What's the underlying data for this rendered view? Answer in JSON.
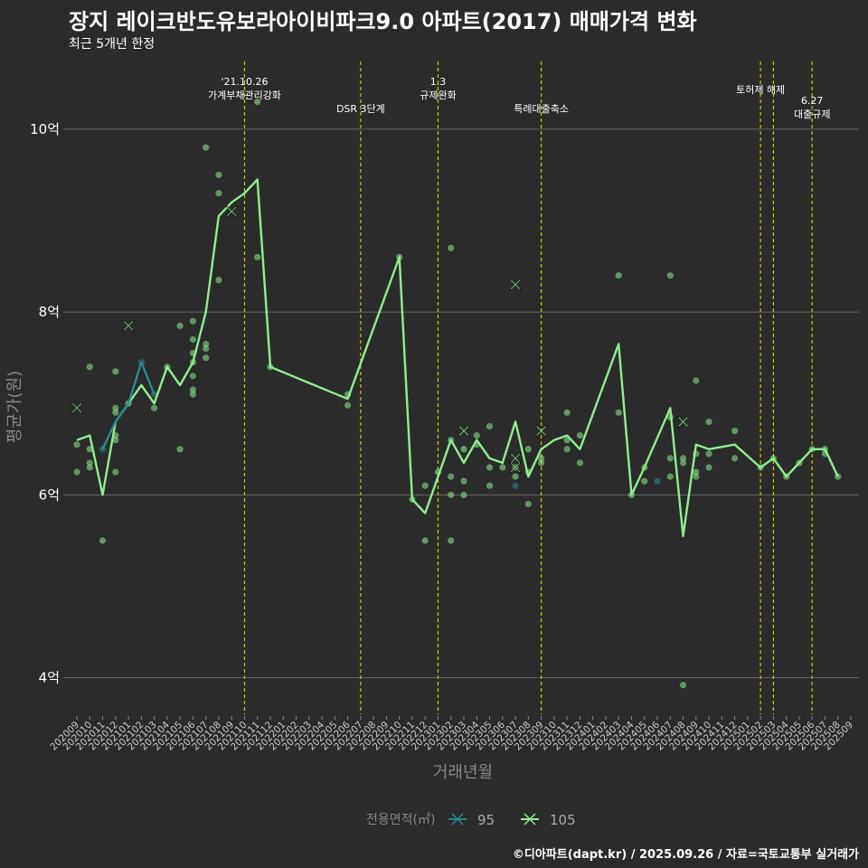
{
  "title": "장지 레이크반도유보라아이비파크9.0 아파트(2017) 매매가격 변화",
  "subtitle": "최근 5개년 한정",
  "caption": "©디아파트(dapt.kr) / 2025.09.26 / 자료=국토교통부 실거래가",
  "colors": {
    "s95": "#2a8a8f",
    "s105": "#90ee90",
    "vline": "#c8c800",
    "grid": "#666666"
  },
  "chart_data": {
    "type": "line",
    "title": "장지 레이크반도유보라아이비파크9.0 아파트(2017) 매매가격 변화",
    "xlabel": "거래년월",
    "ylabel": "평균가(원)",
    "ylim": [
      3.6,
      10.8
    ],
    "yticks": [
      4,
      6,
      8,
      10
    ],
    "ytick_labels": [
      "4억",
      "6억",
      "8억",
      "10억"
    ],
    "categories": [
      "202009",
      "202010",
      "202011",
      "202012",
      "202101",
      "202102",
      "202103",
      "202104",
      "202105",
      "202106",
      "202107",
      "202108",
      "202109",
      "202110",
      "202111",
      "202112",
      "202201",
      "202202",
      "202203",
      "202204",
      "202205",
      "202206",
      "202207",
      "202208",
      "202209",
      "202210",
      "202211",
      "202212",
      "202301",
      "202302",
      "202303",
      "202304",
      "202305",
      "202306",
      "202307",
      "202308",
      "202309",
      "202310",
      "202311",
      "202312",
      "202401",
      "202402",
      "202403",
      "202404",
      "202405",
      "202406",
      "202407",
      "202408",
      "202409",
      "202410",
      "202411",
      "202412",
      "202501",
      "202502",
      "202503",
      "202504",
      "202505",
      "202506",
      "202507",
      "202508",
      "202509"
    ],
    "legend_title": "전용면적(㎡)",
    "series": [
      {
        "name": "95",
        "color": "#2a8a8f",
        "line": [
          [
            "202011",
            6.5
          ],
          [
            "202012",
            6.8
          ],
          [
            "202101",
            7.0
          ],
          [
            "202102",
            7.45
          ],
          [
            "202103",
            7.1
          ]
        ],
        "points": [
          [
            "202011",
            6.5
          ],
          [
            "202102",
            7.45
          ],
          [
            "202103",
            7.1
          ],
          [
            "202307",
            6.1
          ],
          [
            "202406",
            6.15
          ]
        ],
        "crosses": []
      },
      {
        "name": "105",
        "color": "#90ee90",
        "line": [
          [
            "202009",
            6.6
          ],
          [
            "202010",
            6.65
          ],
          [
            "202011",
            6.0
          ],
          [
            "202012",
            6.8
          ],
          [
            "202101",
            7.0
          ],
          [
            "202102",
            7.2
          ],
          [
            "202103",
            7.0
          ],
          [
            "202104",
            7.4
          ],
          [
            "202105",
            7.2
          ],
          [
            "202106",
            7.45
          ],
          [
            "202107",
            8.0
          ],
          [
            "202108",
            9.05
          ],
          [
            "202109",
            9.2
          ],
          [
            "202110",
            9.3
          ],
          [
            "202111",
            9.45
          ],
          [
            "202112",
            7.4
          ],
          [
            "202206",
            7.05
          ],
          [
            "202210",
            8.6
          ],
          [
            "202211",
            5.95
          ],
          [
            "202212",
            5.8
          ],
          [
            "202301",
            6.2
          ],
          [
            "202302",
            6.6
          ],
          [
            "202303",
            6.35
          ],
          [
            "202304",
            6.6
          ],
          [
            "202305",
            6.4
          ],
          [
            "202306",
            6.35
          ],
          [
            "202307",
            6.8
          ],
          [
            "202308",
            6.2
          ],
          [
            "202309",
            6.5
          ],
          [
            "202310",
            6.6
          ],
          [
            "202311",
            6.65
          ],
          [
            "202312",
            6.5
          ],
          [
            "202403",
            7.65
          ],
          [
            "202404",
            6.0
          ],
          [
            "202405",
            6.3
          ],
          [
            "202407",
            6.95
          ],
          [
            "202408",
            5.55
          ],
          [
            "202409",
            6.55
          ],
          [
            "202410",
            6.5
          ],
          [
            "202412",
            6.55
          ],
          [
            "202502",
            6.3
          ],
          [
            "202503",
            6.4
          ],
          [
            "202504",
            6.2
          ],
          [
            "202505",
            6.35
          ],
          [
            "202506",
            6.5
          ],
          [
            "202507",
            6.5
          ],
          [
            "202508",
            6.2
          ]
        ],
        "points": [
          [
            "202009",
            6.25
          ],
          [
            "202009",
            6.55
          ],
          [
            "202010",
            7.4
          ],
          [
            "202010",
            6.5
          ],
          [
            "202010",
            6.35
          ],
          [
            "202010",
            6.3
          ],
          [
            "202011",
            5.5
          ],
          [
            "202012",
            6.9
          ],
          [
            "202012",
            6.95
          ],
          [
            "202012",
            6.65
          ],
          [
            "202012",
            6.6
          ],
          [
            "202012",
            7.35
          ],
          [
            "202012",
            6.25
          ],
          [
            "202101",
            7.0
          ],
          [
            "202103",
            6.95
          ],
          [
            "202104",
            7.4
          ],
          [
            "202105",
            7.85
          ],
          [
            "202105",
            6.5
          ],
          [
            "202106",
            7.9
          ],
          [
            "202106",
            7.7
          ],
          [
            "202106",
            7.55
          ],
          [
            "202106",
            7.45
          ],
          [
            "202106",
            7.3
          ],
          [
            "202106",
            7.15
          ],
          [
            "202106",
            7.1
          ],
          [
            "202107",
            9.8
          ],
          [
            "202107",
            7.65
          ],
          [
            "202107",
            7.6
          ],
          [
            "202107",
            7.5
          ],
          [
            "202108",
            9.5
          ],
          [
            "202108",
            9.3
          ],
          [
            "202108",
            8.35
          ],
          [
            "202111",
            10.3
          ],
          [
            "202111",
            8.6
          ],
          [
            "202112",
            7.4
          ],
          [
            "202206",
            7.1
          ],
          [
            "202206",
            6.98
          ],
          [
            "202210",
            8.6
          ],
          [
            "202211",
            5.95
          ],
          [
            "202212",
            6.1
          ],
          [
            "202212",
            5.5
          ],
          [
            "202301",
            6.25
          ],
          [
            "202302",
            8.7
          ],
          [
            "202302",
            6.6
          ],
          [
            "202302",
            6.2
          ],
          [
            "202302",
            6.0
          ],
          [
            "202302",
            5.5
          ],
          [
            "202303",
            6.5
          ],
          [
            "202303",
            6.15
          ],
          [
            "202303",
            6.0
          ],
          [
            "202304",
            6.65
          ],
          [
            "202304",
            6.55
          ],
          [
            "202305",
            6.75
          ],
          [
            "202305",
            6.3
          ],
          [
            "202305",
            6.1
          ],
          [
            "202306",
            6.3
          ],
          [
            "202307",
            6.3
          ],
          [
            "202307",
            6.2
          ],
          [
            "202308",
            6.5
          ],
          [
            "202308",
            5.9
          ],
          [
            "202308",
            6.25
          ],
          [
            "202309",
            6.4
          ],
          [
            "202309",
            6.35
          ],
          [
            "202311",
            6.9
          ],
          [
            "202311",
            6.6
          ],
          [
            "202311",
            6.5
          ],
          [
            "202312",
            6.65
          ],
          [
            "202312",
            6.35
          ],
          [
            "202403",
            8.4
          ],
          [
            "202403",
            6.9
          ],
          [
            "202404",
            6.0
          ],
          [
            "202405",
            6.3
          ],
          [
            "202405",
            6.15
          ],
          [
            "202407",
            8.4
          ],
          [
            "202407",
            6.85
          ],
          [
            "202407",
            6.4
          ],
          [
            "202407",
            6.2
          ],
          [
            "202408",
            6.4
          ],
          [
            "202408",
            6.35
          ],
          [
            "202408",
            3.92
          ],
          [
            "202409",
            7.25
          ],
          [
            "202409",
            6.45
          ],
          [
            "202409",
            6.25
          ],
          [
            "202409",
            6.2
          ],
          [
            "202410",
            6.8
          ],
          [
            "202410",
            6.45
          ],
          [
            "202410",
            6.3
          ],
          [
            "202412",
            6.7
          ],
          [
            "202412",
            6.4
          ],
          [
            "202502",
            6.3
          ],
          [
            "202503",
            6.4
          ],
          [
            "202504",
            6.2
          ],
          [
            "202505",
            6.35
          ],
          [
            "202506",
            6.5
          ],
          [
            "202507",
            6.5
          ],
          [
            "202507",
            6.45
          ],
          [
            "202508",
            6.2
          ]
        ],
        "crosses": [
          [
            "202009",
            6.95
          ],
          [
            "202101",
            7.85
          ],
          [
            "202109",
            9.1
          ],
          [
            "202303",
            6.7
          ],
          [
            "202307",
            8.3
          ],
          [
            "202307",
            6.4
          ],
          [
            "202307",
            6.3
          ],
          [
            "202309",
            6.7
          ],
          [
            "202408",
            6.8
          ]
        ]
      }
    ],
    "vlines": [
      {
        "x": "202110",
        "label_lines": [
          "'21.10.26",
          "가계부채관리강화"
        ],
        "label_level": 1
      },
      {
        "x": "202207",
        "label_lines": [
          "DSR 3단계"
        ],
        "label_level": 2
      },
      {
        "x": "202301",
        "label_lines": [
          "1.3",
          "규제완화"
        ],
        "label_level": 1
      },
      {
        "x": "202309",
        "label_lines": [
          "특례대출축소"
        ],
        "label_level": 2
      },
      {
        "x": "202502",
        "label_lines": [
          "토허제 해제"
        ],
        "label_level": 0
      },
      {
        "x": "202503",
        "label_lines": [],
        "label_level": 0
      },
      {
        "x": "202506",
        "label_lines": [
          "6.27",
          "대출규제"
        ],
        "label_level": 3
      }
    ]
  }
}
